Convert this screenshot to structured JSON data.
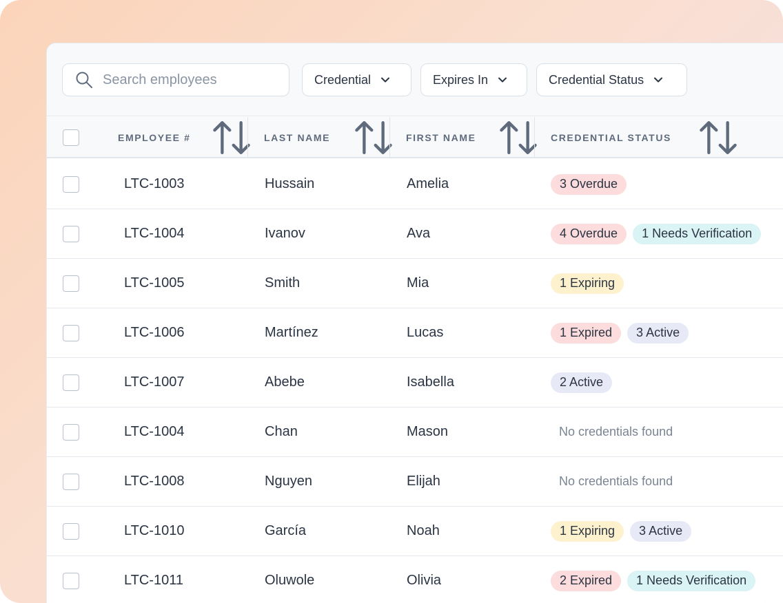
{
  "search": {
    "placeholder": "Search employees"
  },
  "filters": [
    "Credential",
    "Expires In",
    "Credential Status"
  ],
  "columns": {
    "employee_no": "EMPLOYEE #",
    "last_name": "LAST NAME",
    "first_name": "FIRST NAME",
    "credential_status": "CREDENTIAL STATUS"
  },
  "empty_text": "No credentials found",
  "rows": [
    {
      "id": "LTC-1003",
      "last": "Hussain",
      "first": "Amelia",
      "badges": [
        {
          "text": "3 Overdue",
          "kind": "overdue"
        }
      ]
    },
    {
      "id": "LTC-1004",
      "last": "Ivanov",
      "first": "Ava",
      "badges": [
        {
          "text": "4 Overdue",
          "kind": "overdue"
        },
        {
          "text": "1 Needs Verification",
          "kind": "verify"
        }
      ]
    },
    {
      "id": "LTC-1005",
      "last": "Smith",
      "first": "Mia",
      "badges": [
        {
          "text": "1 Expiring",
          "kind": "expiring"
        }
      ]
    },
    {
      "id": "LTC-1006",
      "last": "Martínez",
      "first": "Lucas",
      "badges": [
        {
          "text": "1 Expired",
          "kind": "expired"
        },
        {
          "text": "3 Active",
          "kind": "active"
        }
      ]
    },
    {
      "id": "LTC-1007",
      "last": "Abebe",
      "first": "Isabella",
      "badges": [
        {
          "text": "2 Active",
          "kind": "active"
        }
      ]
    },
    {
      "id": "LTC-1004",
      "last": "Chan",
      "first": "Mason",
      "badges": []
    },
    {
      "id": "LTC-1008",
      "last": "Nguyen",
      "first": "Elijah",
      "badges": []
    },
    {
      "id": "LTC-1010",
      "last": "García",
      "first": "Noah",
      "badges": [
        {
          "text": "1 Expiring",
          "kind": "expiring"
        },
        {
          "text": "3 Active",
          "kind": "active"
        }
      ]
    },
    {
      "id": "LTC-1011",
      "last": "Oluwole",
      "first": "Olivia",
      "badges": [
        {
          "text": "2 Expired",
          "kind": "expired"
        },
        {
          "text": "1 Needs Verification",
          "kind": "verify"
        }
      ]
    }
  ],
  "colors": {
    "overdue": "#fcdcdc",
    "expired": "#fcdcdc",
    "verify": "#daf3f5",
    "expiring": "#fdf2cd",
    "active": "#e7e9f7"
  },
  "icons": {
    "search": "search-icon",
    "dropdown": "chevron-down-icon",
    "sort": "sort-icon"
  }
}
